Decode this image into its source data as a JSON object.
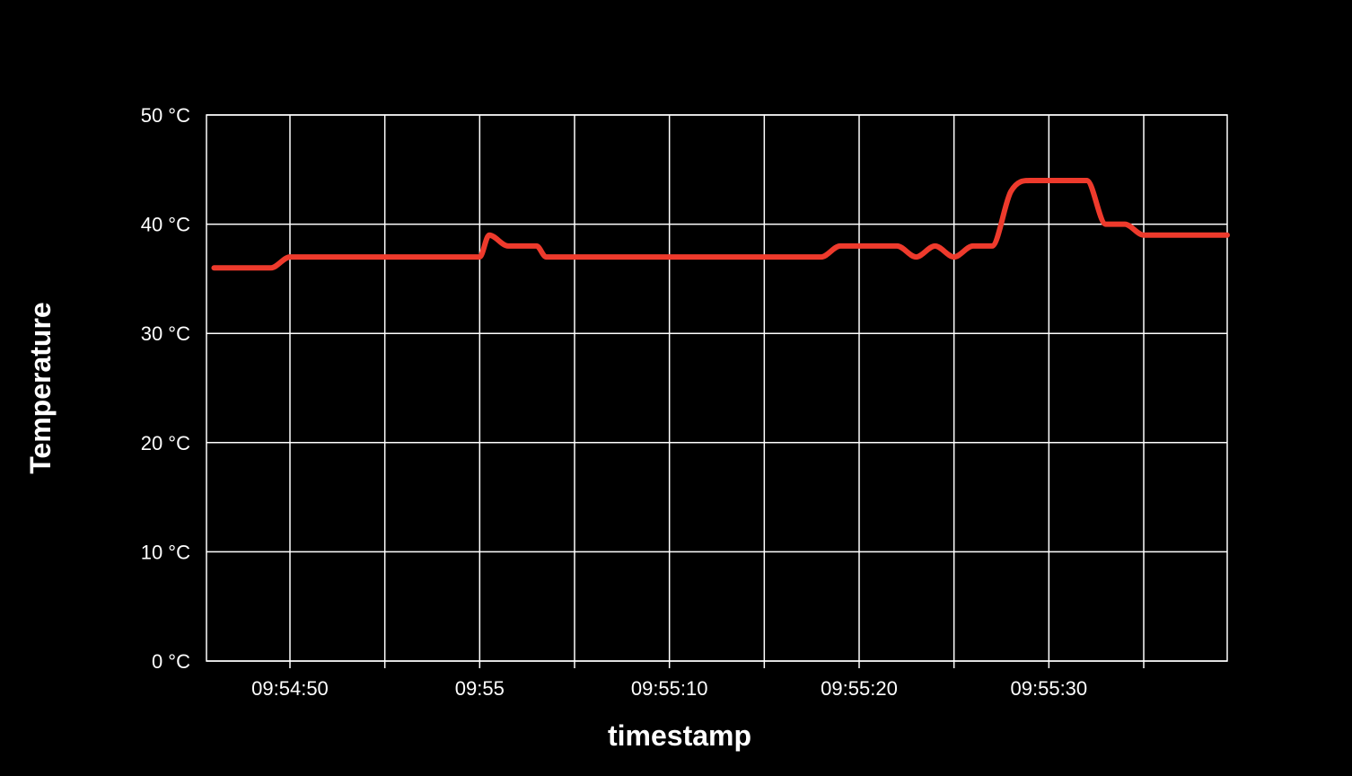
{
  "chart_data": {
    "type": "line",
    "title": "",
    "xlabel": "timestamp",
    "ylabel": "Temperature",
    "y_unit": "°C",
    "ylim": [
      0,
      50
    ],
    "y_ticks": [
      {
        "value": 0,
        "label": "0 °C"
      },
      {
        "value": 10,
        "label": "10 °C"
      },
      {
        "value": 20,
        "label": "20 °C"
      },
      {
        "value": 30,
        "label": "30 °C"
      },
      {
        "value": 40,
        "label": "40 °C"
      },
      {
        "value": 50,
        "label": "50 °C"
      }
    ],
    "xlim": [
      "09:54:45.6",
      "09:55:39.4"
    ],
    "x_gridlines": [
      "09:54:50",
      "09:54:55",
      "09:55:00",
      "09:55:05",
      "09:55:10",
      "09:55:15",
      "09:55:20",
      "09:55:25",
      "09:55:30",
      "09:55:35"
    ],
    "x_ticks": [
      {
        "value": "09:54:50",
        "label": "09:54:50"
      },
      {
        "value": "09:55:00",
        "label": "09:55"
      },
      {
        "value": "09:55:10",
        "label": "09:55:10"
      },
      {
        "value": "09:55:20",
        "label": "09:55:20"
      },
      {
        "value": "09:55:30",
        "label": "09:55:30"
      }
    ],
    "grid": true,
    "colors": {
      "background": "#000000",
      "grid": "#ffffff",
      "series": "#ee3a2c",
      "text": "#ffffff"
    },
    "series": [
      {
        "x": [
          "09:54:46",
          "09:54:49",
          "09:54:50",
          "09:54:55",
          "09:54:59",
          "09:55:00",
          "09:55:00.5",
          "09:55:01.5",
          "09:55:03",
          "09:55:03.5",
          "09:55:09",
          "09:55:14",
          "09:55:18",
          "09:55:19",
          "09:55:22",
          "09:55:23",
          "09:55:24",
          "09:55:25",
          "09:55:26",
          "09:55:27",
          "09:55:28",
          "09:55:29",
          "09:55:30",
          "09:55:32",
          "09:55:33",
          "09:55:34",
          "09:55:35",
          "09:55:37",
          "09:55:39.4"
        ],
        "values": [
          36,
          36,
          37,
          37,
          37,
          37,
          39,
          38,
          38,
          37,
          37,
          37,
          37,
          38,
          38,
          37,
          38,
          37,
          38,
          38,
          43,
          44,
          44,
          44,
          40,
          40,
          39,
          39,
          39
        ]
      }
    ]
  }
}
